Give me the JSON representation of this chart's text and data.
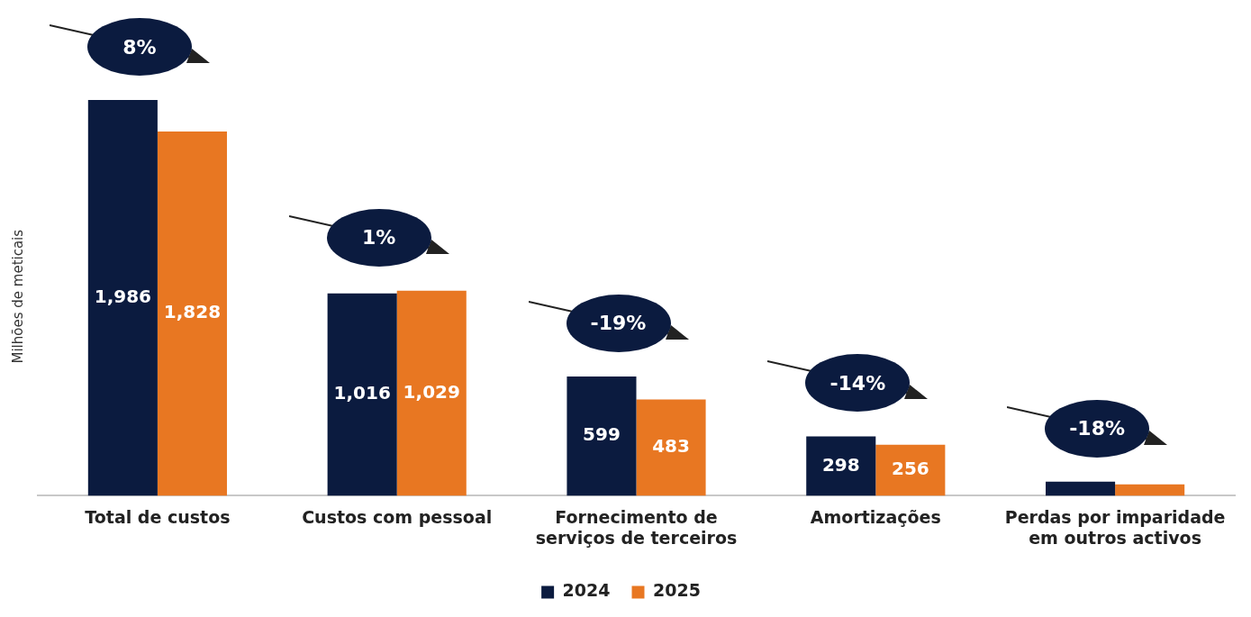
{
  "chart_data": {
    "type": "bar",
    "ylabel": "Milhões de meticais",
    "categories": [
      "Total de custos",
      "Custos com pessoal",
      "Fornecimento de serviços de terceiros",
      "Amortizações",
      "Perdas por imparidade em outros activos"
    ],
    "series": [
      {
        "name": "2024",
        "color": "#0b1b3f",
        "values": [
          1986,
          1016,
          599,
          298,
          71
        ],
        "value_labels": [
          "1,986",
          "1,016",
          "599",
          "298",
          null
        ]
      },
      {
        "name": "2025",
        "color": "#e87722",
        "values": [
          1828,
          1029,
          483,
          256,
          57
        ],
        "value_labels": [
          "1,828",
          "1,029",
          "483",
          "256",
          null
        ]
      }
    ],
    "annotations": [
      "8%",
      "1%",
      "-19%",
      "-14%",
      "-18%"
    ],
    "grid": false,
    "legend": "bottom"
  }
}
